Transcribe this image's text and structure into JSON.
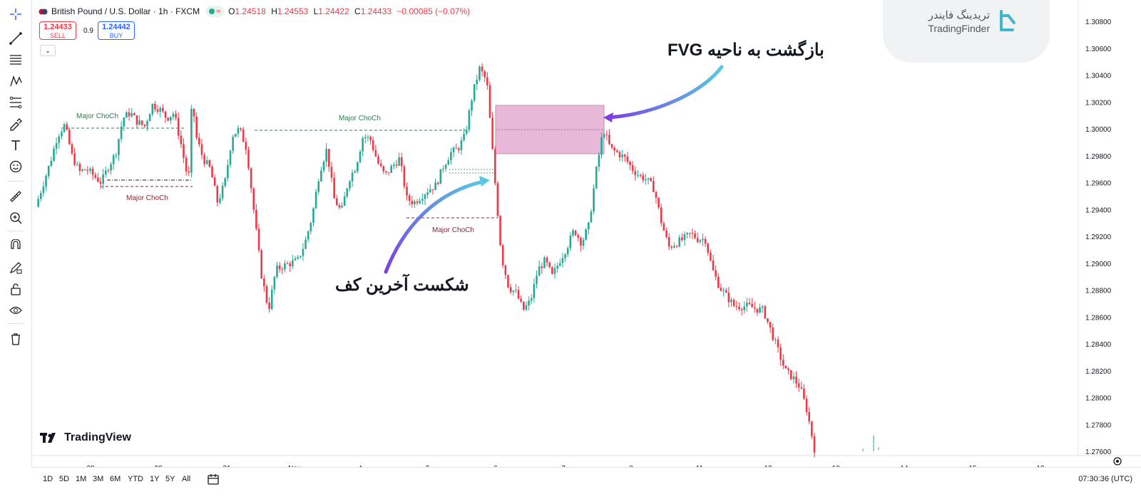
{
  "symbol": {
    "title": "British Pound / U.S. Dollar · 1h · FXCM",
    "ohlc": [
      {
        "k": "O",
        "v": "1.24518"
      },
      {
        "k": "H",
        "v": "1.24553"
      },
      {
        "k": "L",
        "v": "1.24422"
      },
      {
        "k": "C",
        "v": "1.24433"
      }
    ],
    "change": "−0.00085 (−0.07%)"
  },
  "trade": {
    "sell_price": "1.24433",
    "sell_label": "SELL",
    "spread": "0.9",
    "buy_price": "1.24442",
    "buy_label": "BUY"
  },
  "brand": {
    "name_fa": "تریدینگ فایندر",
    "name_en": "TradingFinder"
  },
  "watermark": "TradingView",
  "annotations": {
    "choch_1": "Major ChoCh",
    "choch_2": "Major ChoCh",
    "choch_3": "Major ChoCh",
    "choch_4": "Major ChoCh",
    "fvg_return": "بازگشت به ناحیه FVG",
    "last_low_break": "شکست آخرین کف"
  },
  "price_axis": [
    "1.30800",
    "1.30600",
    "1.30400",
    "1.30200",
    "1.30000",
    "1.29800",
    "1.29600",
    "1.29400",
    "1.29200",
    "1.29000",
    "1.28800",
    "1.28600",
    "1.28400",
    "1.28200",
    "1.28000",
    "1.27800",
    "1.27600"
  ],
  "time_axis": [
    "29",
    "30",
    "31",
    "Nov",
    "4",
    "5",
    "6",
    "7",
    "8",
    "11",
    "12",
    "13",
    "14",
    "15",
    "18"
  ],
  "timeframes": [
    "1D",
    "5D",
    "1M",
    "3M",
    "6M",
    "YTD",
    "1Y",
    "5Y",
    "All"
  ],
  "clock": "07:30:36 (UTC)",
  "colors": {
    "up": "#22ab94",
    "down": "#f23645",
    "fvg_zone": "#e8b8d8",
    "choch_green": "#2e7d4f",
    "choch_red": "#8b2635"
  },
  "chart_data": {
    "type": "candlestick",
    "path": [
      [
        0,
        1.2942
      ],
      [
        2,
        1.2975
      ],
      [
        3,
        1.2995
      ],
      [
        4,
        1.3003
      ],
      [
        5,
        1.298
      ],
      [
        6,
        1.2968
      ],
      [
        7,
        1.297
      ],
      [
        9,
        1.296
      ],
      [
        10,
        1.2972
      ],
      [
        11,
        1.2982
      ],
      [
        12,
        1.3008
      ],
      [
        13,
        1.3012
      ],
      [
        14,
        1.3005
      ],
      [
        15,
        1.3002
      ],
      [
        16,
        1.3018
      ],
      [
        17,
        1.3015
      ],
      [
        18,
        1.3008
      ],
      [
        19,
        1.3012
      ],
      [
        20,
        1.2988
      ],
      [
        21,
        1.296
      ],
      [
        21.5,
        1.3025
      ],
      [
        22,
        1.2995
      ],
      [
        23,
        1.2978
      ],
      [
        24,
        1.297
      ],
      [
        25,
        1.2945
      ],
      [
        26,
        1.296
      ],
      [
        27,
        1.2995
      ],
      [
        28,
        1.3
      ],
      [
        29,
        1.2985
      ],
      [
        30,
        1.2938
      ],
      [
        31,
        1.2892
      ],
      [
        32,
        1.2865
      ],
      [
        33,
        1.2895
      ],
      [
        34,
        1.2898
      ],
      [
        35,
        1.29
      ],
      [
        36,
        1.2902
      ],
      [
        37,
        1.2915
      ],
      [
        38,
        1.2935
      ],
      [
        39,
        1.2968
      ],
      [
        40,
        1.2985
      ],
      [
        41,
        1.2948
      ],
      [
        42,
        1.2938
      ],
      [
        43,
        1.2962
      ],
      [
        44,
        1.2972
      ],
      [
        45,
        1.2995
      ],
      [
        46,
        1.2992
      ],
      [
        47,
        1.2975
      ],
      [
        48,
        1.2965
      ],
      [
        49,
        1.2972
      ],
      [
        50,
        1.2978
      ],
      [
        51,
        1.2948
      ],
      [
        52,
        1.2945
      ],
      [
        53,
        1.295
      ],
      [
        54,
        1.2955
      ],
      [
        55,
        1.2958
      ],
      [
        56,
        1.2972
      ],
      [
        57,
        1.2982
      ],
      [
        58,
        1.2985
      ],
      [
        59,
        1.2995
      ],
      [
        60,
        1.3025
      ],
      [
        61,
        1.3045
      ],
      [
        62,
        1.3035
      ],
      [
        63,
        1.2968
      ],
      [
        64,
        1.2905
      ],
      [
        65,
        1.2882
      ],
      [
        66,
        1.2878
      ],
      [
        67,
        1.2865
      ],
      [
        68,
        1.2872
      ],
      [
        69,
        1.2895
      ],
      [
        70,
        1.2902
      ],
      [
        71,
        1.289
      ],
      [
        72,
        1.2902
      ],
      [
        73,
        1.2912
      ],
      [
        74,
        1.2925
      ],
      [
        75,
        1.2915
      ],
      [
        76,
        1.2928
      ],
      [
        77,
        1.2968
      ],
      [
        78,
        1.3
      ],
      [
        79,
        1.2985
      ],
      [
        80,
        1.2982
      ],
      [
        81,
        1.2978
      ],
      [
        82,
        1.297
      ],
      [
        83,
        1.2965
      ],
      [
        84,
        1.2962
      ],
      [
        85,
        1.2955
      ],
      [
        86,
        1.293
      ],
      [
        87,
        1.2912
      ],
      [
        88,
        1.2915
      ],
      [
        89,
        1.2918
      ],
      [
        90,
        1.2922
      ],
      [
        91,
        1.2918
      ],
      [
        92,
        1.2918
      ],
      [
        93,
        1.2895
      ],
      [
        94,
        1.2882
      ],
      [
        95,
        1.2875
      ],
      [
        96,
        1.2868
      ],
      [
        97,
        1.2868
      ],
      [
        98,
        1.2868
      ],
      [
        99,
        1.2866
      ],
      [
        100,
        1.2865
      ],
      [
        101,
        1.285
      ],
      [
        102,
        1.2835
      ],
      [
        103,
        1.282
      ],
      [
        104,
        1.2815
      ],
      [
        105,
        1.2808
      ],
      [
        106,
        1.279
      ],
      [
        107,
        1.2762
      ]
    ]
  }
}
